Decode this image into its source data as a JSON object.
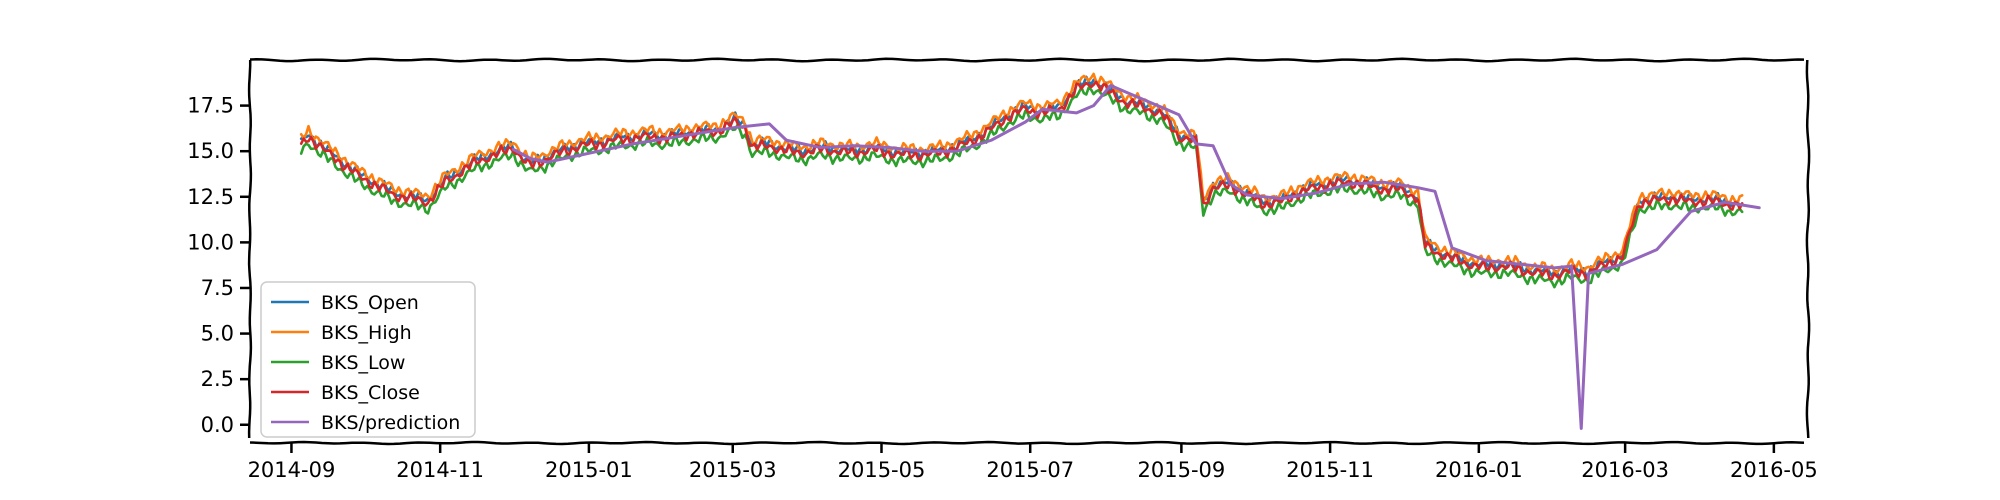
{
  "chart_data": {
    "type": "line",
    "title": "",
    "xlabel": "",
    "ylabel": "",
    "xlim": [
      "2014-08-15",
      "2016-05-15"
    ],
    "ylim": [
      -1.0,
      20.0
    ],
    "x_ticks": [
      "2014-09-01",
      "2014-11-01",
      "2015-01-01",
      "2015-03-01",
      "2015-05-01",
      "2015-07-01",
      "2015-09-01",
      "2015-11-01",
      "2016-01-01",
      "2016-03-01",
      "2016-05-01"
    ],
    "x_tick_labels": [
      "2014-09",
      "2014-11",
      "2015-01",
      "2015-03",
      "2015-05",
      "2015-07",
      "2015-09",
      "2015-11",
      "2016-01",
      "2016-03",
      "2016-05"
    ],
    "y_ticks": [
      0.0,
      2.5,
      5.0,
      7.5,
      10.0,
      12.5,
      15.0,
      17.5
    ],
    "y_tick_labels": [
      "0.0",
      "2.5",
      "5.0",
      "7.5",
      "10.0",
      "12.5",
      "15.0",
      "17.5"
    ],
    "grid": false,
    "style": "xkcd",
    "legend": {
      "position": "lower-left"
    },
    "series": [
      {
        "name": "BKS_Open",
        "color": "#1f77b4",
        "offset": 0.15
      },
      {
        "name": "BKS_High",
        "color": "#ff7f0e",
        "offset": 0.35
      },
      {
        "name": "BKS_Low",
        "color": "#2ca02c",
        "offset": -0.35
      },
      {
        "name": "BKS_Close",
        "color": "#d62728",
        "offset": 0.0
      },
      {
        "name": "BKS/prediction",
        "color": "#9467bd",
        "offset": 0.0
      }
    ],
    "close_points": [
      [
        "2014-09-05",
        15.3
      ],
      [
        "2014-09-08",
        15.8
      ],
      [
        "2014-09-15",
        15.0
      ],
      [
        "2014-09-22",
        14.3
      ],
      [
        "2014-09-29",
        13.6
      ],
      [
        "2014-10-06",
        13.1
      ],
      [
        "2014-10-13",
        12.6
      ],
      [
        "2014-10-20",
        12.4
      ],
      [
        "2014-10-27",
        12.2
      ],
      [
        "2014-11-03",
        13.3
      ],
      [
        "2014-11-10",
        13.9
      ],
      [
        "2014-11-17",
        14.5
      ],
      [
        "2014-11-24",
        14.8
      ],
      [
        "2014-12-01",
        15.2
      ],
      [
        "2014-12-05",
        14.5
      ],
      [
        "2014-12-08",
        14.2
      ],
      [
        "2014-12-15",
        14.6
      ],
      [
        "2014-12-22",
        15.0
      ],
      [
        "2014-12-29",
        15.3
      ],
      [
        "2015-01-05",
        15.4
      ],
      [
        "2015-01-12",
        15.6
      ],
      [
        "2015-01-19",
        15.7
      ],
      [
        "2015-01-26",
        15.8
      ],
      [
        "2015-02-02",
        15.7
      ],
      [
        "2015-02-09",
        15.9
      ],
      [
        "2015-02-16",
        16.0
      ],
      [
        "2015-02-23",
        16.1
      ],
      [
        "2015-03-02",
        16.6
      ],
      [
        "2015-03-06",
        16.3
      ],
      [
        "2015-03-09",
        15.2
      ],
      [
        "2015-03-16",
        15.3
      ],
      [
        "2015-03-23",
        15.0
      ],
      [
        "2015-03-30",
        14.9
      ],
      [
        "2015-04-06",
        15.1
      ],
      [
        "2015-04-13",
        15.0
      ],
      [
        "2015-04-20",
        14.9
      ],
      [
        "2015-04-27",
        15.1
      ],
      [
        "2015-05-04",
        14.9
      ],
      [
        "2015-05-11",
        14.8
      ],
      [
        "2015-05-18",
        14.8
      ],
      [
        "2015-05-25",
        14.9
      ],
      [
        "2015-06-01",
        15.2
      ],
      [
        "2015-06-08",
        15.6
      ],
      [
        "2015-06-15",
        16.2
      ],
      [
        "2015-06-22",
        16.9
      ],
      [
        "2015-06-29",
        17.3
      ],
      [
        "2015-07-06",
        17.1
      ],
      [
        "2015-07-13",
        17.3
      ],
      [
        "2015-07-20",
        18.4
      ],
      [
        "2015-07-27",
        18.8
      ],
      [
        "2015-08-03",
        18.2
      ],
      [
        "2015-08-10",
        17.6
      ],
      [
        "2015-08-17",
        17.4
      ],
      [
        "2015-08-24",
        17.0
      ],
      [
        "2015-08-31",
        15.8
      ],
      [
        "2015-09-07",
        15.5
      ],
      [
        "2015-09-10",
        12.0
      ],
      [
        "2015-09-14",
        13.0
      ],
      [
        "2015-09-21",
        13.1
      ],
      [
        "2015-09-28",
        12.6
      ],
      [
        "2015-10-05",
        12.1
      ],
      [
        "2015-10-12",
        12.2
      ],
      [
        "2015-10-19",
        12.7
      ],
      [
        "2015-10-26",
        13.0
      ],
      [
        "2015-11-02",
        13.2
      ],
      [
        "2015-11-09",
        13.3
      ],
      [
        "2015-11-16",
        13.1
      ],
      [
        "2015-11-23",
        12.9
      ],
      [
        "2015-11-30",
        12.9
      ],
      [
        "2015-12-07",
        12.4
      ],
      [
        "2015-12-10",
        9.8
      ],
      [
        "2015-12-14",
        9.5
      ],
      [
        "2015-12-21",
        9.1
      ],
      [
        "2015-12-28",
        8.8
      ],
      [
        "2016-01-04",
        8.6
      ],
      [
        "2016-01-11",
        8.7
      ],
      [
        "2016-01-18",
        8.5
      ],
      [
        "2016-01-25",
        8.3
      ],
      [
        "2016-02-01",
        8.2
      ],
      [
        "2016-02-08",
        8.4
      ],
      [
        "2016-02-15",
        8.3
      ],
      [
        "2016-02-22",
        8.8
      ],
      [
        "2016-02-29",
        9.2
      ],
      [
        "2016-03-04",
        11.0
      ],
      [
        "2016-03-07",
        12.2
      ],
      [
        "2016-03-14",
        12.3
      ],
      [
        "2016-03-21",
        12.4
      ],
      [
        "2016-03-28",
        12.2
      ],
      [
        "2016-04-04",
        12.3
      ],
      [
        "2016-04-11",
        12.1
      ],
      [
        "2016-04-18",
        12.0
      ]
    ],
    "prediction_points": [
      [
        "2014-12-01",
        15.1
      ],
      [
        "2014-12-08",
        14.6
      ],
      [
        "2014-12-15",
        14.4
      ],
      [
        "2014-12-22",
        14.6
      ],
      [
        "2015-01-05",
        15.0
      ],
      [
        "2015-01-19",
        15.4
      ],
      [
        "2015-02-02",
        15.7
      ],
      [
        "2015-02-16",
        16.0
      ],
      [
        "2015-03-02",
        16.3
      ],
      [
        "2015-03-16",
        16.5
      ],
      [
        "2015-03-23",
        15.6
      ],
      [
        "2015-04-06",
        15.2
      ],
      [
        "2015-04-20",
        15.3
      ],
      [
        "2015-05-04",
        15.2
      ],
      [
        "2015-05-18",
        15.0
      ],
      [
        "2015-06-01",
        15.0
      ],
      [
        "2015-06-15",
        15.6
      ],
      [
        "2015-06-29",
        16.6
      ],
      [
        "2015-07-06",
        17.3
      ],
      [
        "2015-07-20",
        17.1
      ],
      [
        "2015-07-27",
        17.5
      ],
      [
        "2015-08-03",
        18.6
      ],
      [
        "2015-08-10",
        18.2
      ],
      [
        "2015-08-24",
        17.4
      ],
      [
        "2015-08-31",
        17.0
      ],
      [
        "2015-09-07",
        15.4
      ],
      [
        "2015-09-14",
        15.3
      ],
      [
        "2015-09-21",
        13.2
      ],
      [
        "2015-09-28",
        12.6
      ],
      [
        "2015-10-12",
        12.4
      ],
      [
        "2015-10-26",
        12.7
      ],
      [
        "2015-11-09",
        13.2
      ],
      [
        "2015-11-23",
        13.3
      ],
      [
        "2015-12-07",
        13.0
      ],
      [
        "2015-12-14",
        12.8
      ],
      [
        "2015-12-21",
        9.7
      ],
      [
        "2016-01-04",
        9.0
      ],
      [
        "2016-01-18",
        8.8
      ],
      [
        "2016-02-01",
        8.6
      ],
      [
        "2016-02-08",
        8.7
      ],
      [
        "2016-02-12",
        -0.2
      ],
      [
        "2016-02-15",
        8.3
      ],
      [
        "2016-02-29",
        8.8
      ],
      [
        "2016-03-14",
        9.6
      ],
      [
        "2016-03-28",
        11.7
      ],
      [
        "2016-04-11",
        12.2
      ],
      [
        "2016-04-25",
        11.9
      ]
    ]
  }
}
